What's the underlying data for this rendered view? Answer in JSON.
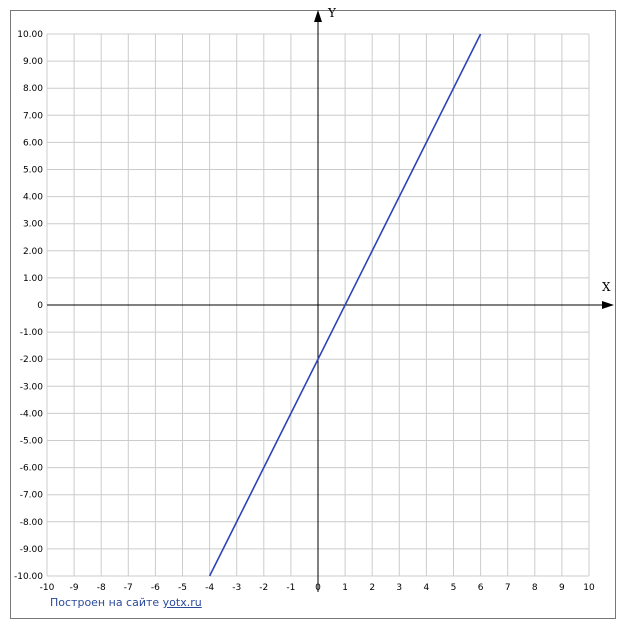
{
  "chart_data": {
    "type": "line",
    "x": [
      -4,
      6
    ],
    "values": [
      -10,
      10
    ],
    "color": "#2e45b8",
    "x_label": "X",
    "y_label": "Y",
    "xlim": [
      -10,
      10
    ],
    "ylim": [
      -10,
      10
    ],
    "xticks": [
      -10,
      -9,
      -8,
      -7,
      -6,
      -5,
      -4,
      -3,
      -2,
      -1,
      0,
      1,
      2,
      3,
      4,
      5,
      6,
      7,
      8,
      9,
      10
    ],
    "yticks": [
      {
        "value": 10,
        "label": "10.00"
      },
      {
        "value": 9,
        "label": "9.00"
      },
      {
        "value": 8,
        "label": "8.00"
      },
      {
        "value": 7,
        "label": "7.00"
      },
      {
        "value": 6,
        "label": "6.00"
      },
      {
        "value": 5,
        "label": "5.00"
      },
      {
        "value": 4,
        "label": "4.00"
      },
      {
        "value": 3,
        "label": "3.00"
      },
      {
        "value": 2,
        "label": "2.00"
      },
      {
        "value": 1,
        "label": "1.00"
      },
      0,
      {
        "value": -1,
        "label": "-1.00"
      },
      {
        "value": -2,
        "label": "-2.00"
      },
      {
        "value": -3,
        "label": "-3.00"
      },
      {
        "value": -4,
        "label": "-4.00"
      },
      {
        "value": -5,
        "label": "-5.00"
      },
      {
        "value": -6,
        "label": "-6.00"
      },
      {
        "value": -7,
        "label": "-7.00"
      },
      {
        "value": -8,
        "label": "-8.00"
      },
      {
        "value": -9,
        "label": "-9.00"
      },
      {
        "value": -10,
        "label": "-10.00"
      }
    ],
    "grid": true
  },
  "footer": {
    "text": "Построен на сайте",
    "link": "yotx.ru"
  }
}
